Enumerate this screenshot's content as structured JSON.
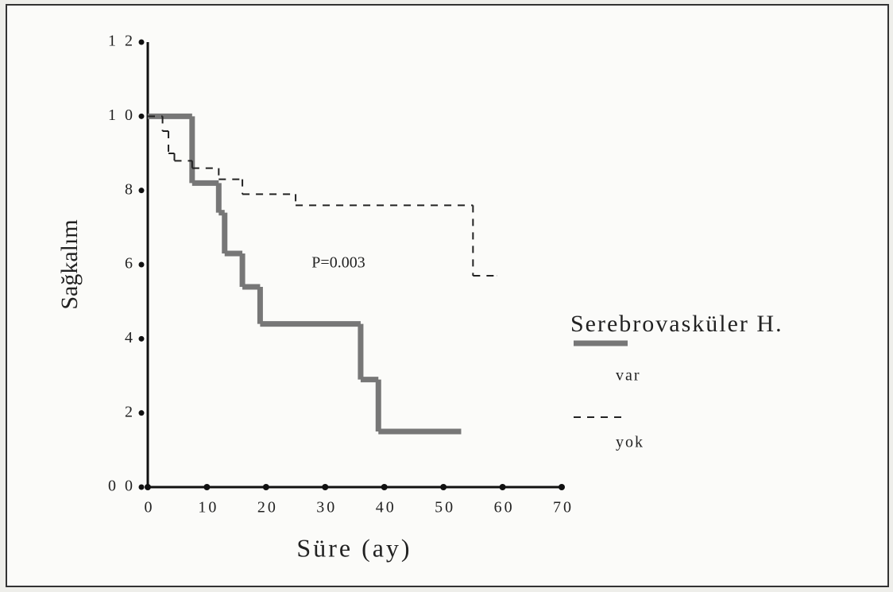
{
  "chart_data": {
    "type": "step",
    "xlabel": "Süre (ay)",
    "ylabel": "Sağkalım",
    "annotation": "P=0.003",
    "legend_title": "Serebrovasküler H.",
    "xlim": [
      0,
      70
    ],
    "xticks": [
      0,
      10,
      20,
      30,
      40,
      50,
      60,
      70
    ],
    "ylim": [
      0,
      1.2
    ],
    "yticks": [
      {
        "value": 0,
        "label": "0 0"
      },
      {
        "value": 0.2,
        "label": "2"
      },
      {
        "value": 0.4,
        "label": "4"
      },
      {
        "value": 0.6,
        "label": "6"
      },
      {
        "value": 0.8,
        "label": "8"
      },
      {
        "value": 1.0,
        "label": "1 0"
      },
      {
        "value": 1.2,
        "label": "1 2"
      }
    ],
    "series": [
      {
        "name": "var",
        "color": "#777777",
        "style": "solid",
        "x": [
          0,
          7.5,
          12,
          13,
          16,
          19,
          36,
          39,
          53
        ],
        "values": [
          1.0,
          0.82,
          0.74,
          0.63,
          0.54,
          0.44,
          0.29,
          0.15,
          0.15
        ]
      },
      {
        "name": "yok",
        "color": "#222222",
        "style": "dashed",
        "x": [
          0,
          2.5,
          3.5,
          4.5,
          7.5,
          12,
          16,
          25,
          55,
          59
        ],
        "values": [
          1.0,
          0.96,
          0.9,
          0.88,
          0.86,
          0.83,
          0.79,
          0.76,
          0.57,
          0.57
        ]
      }
    ]
  }
}
